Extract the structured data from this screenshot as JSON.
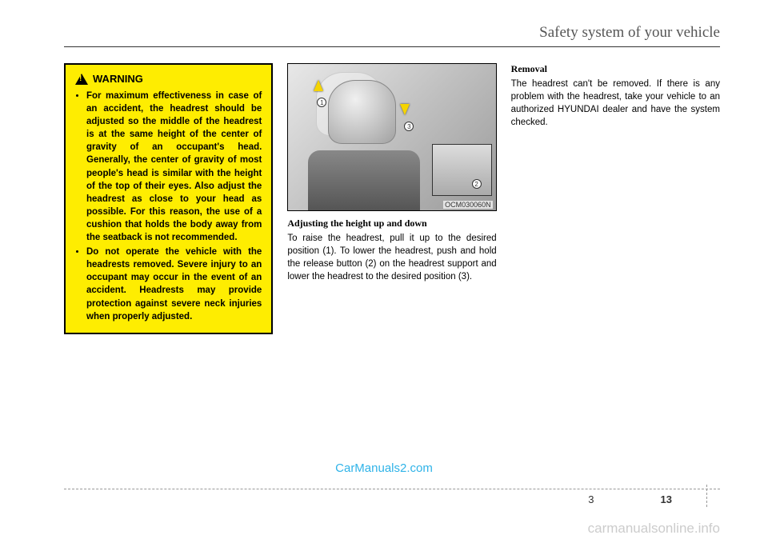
{
  "header": {
    "title": "Safety system of your vehicle"
  },
  "warning": {
    "title": "WARNING",
    "items": [
      "For maximum effectiveness in case of an accident, the headrest should be adjusted so the middle of the headrest is at the same height of the center of gravity of an occupant's head. Generally, the center of gravity of most people's head is similar with the height of the top of their eyes. Also adjust the headrest as close to your head as possible. For this reason, the use of a cushion that holds the body away from the seatback is not recommended.",
      "Do not operate the vehicle with the headrests removed. Severe injury to an occupant may occur in the event of an accident. Headrests may provide protection against severe neck injuries when properly adjusted."
    ]
  },
  "figure": {
    "code": "OCM030060N",
    "labels": {
      "l1": "1",
      "l2": "2",
      "l3": "3"
    }
  },
  "adjusting": {
    "title": "Adjusting the height up and down",
    "body": "To raise the headrest, pull it up to the desired position (1). To lower the headrest, push and hold the release button (2) on the headrest support and lower the headrest to the desired position (3)."
  },
  "removal": {
    "title": "Removal",
    "body": "The headrest can't be removed. If there is any problem with the headrest, take your vehicle to an authorized HYUNDAI dealer and have the system checked."
  },
  "watermark": "CarManuals2.com",
  "footer": {
    "chapter": "3",
    "page": "13"
  },
  "bottom_watermark": "carmanualsonline.info"
}
